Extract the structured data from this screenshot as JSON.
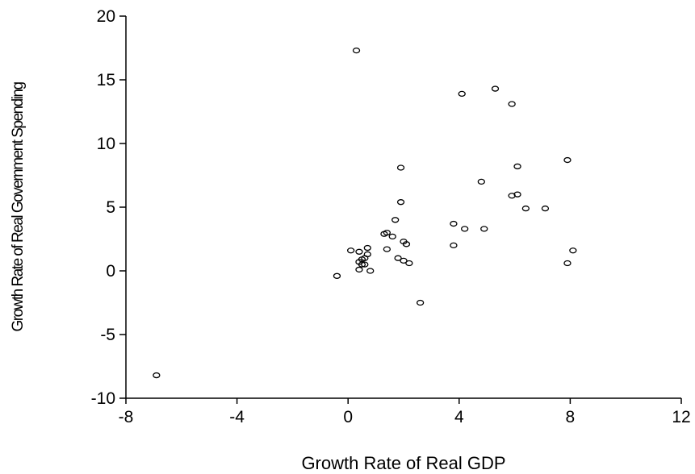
{
  "chart_data": {
    "type": "scatter",
    "title": "",
    "xlabel": "Growth Rate of Real GDP",
    "ylabel": "Growth Rate of Real Government Spending",
    "xlim": [
      -8,
      12
    ],
    "ylim": [
      -10,
      20
    ],
    "xticks": [
      "-8",
      "-4",
      "0",
      "4",
      "8",
      "12"
    ],
    "yticks": [
      "-10",
      "-5",
      "0",
      "5",
      "10",
      "15",
      "20"
    ],
    "grid": false,
    "legend": "none",
    "marker": "open-circle",
    "points": [
      [
        0.3,
        17.3
      ],
      [
        5.3,
        14.3
      ],
      [
        4.1,
        13.9
      ],
      [
        5.9,
        13.1
      ],
      [
        7.9,
        8.7
      ],
      [
        1.9,
        8.1
      ],
      [
        6.1,
        8.2
      ],
      [
        4.8,
        7.0
      ],
      [
        5.9,
        5.9
      ],
      [
        6.1,
        6.0
      ],
      [
        1.9,
        5.4
      ],
      [
        6.4,
        4.9
      ],
      [
        7.1,
        4.9
      ],
      [
        1.7,
        4.0
      ],
      [
        3.8,
        3.7
      ],
      [
        4.2,
        3.3
      ],
      [
        4.9,
        3.3
      ],
      [
        1.3,
        2.9
      ],
      [
        1.4,
        3.0
      ],
      [
        1.6,
        2.7
      ],
      [
        2.0,
        2.3
      ],
      [
        2.1,
        2.1
      ],
      [
        3.8,
        2.0
      ],
      [
        0.7,
        1.8
      ],
      [
        1.4,
        1.7
      ],
      [
        0.1,
        1.6
      ],
      [
        0.4,
        1.5
      ],
      [
        8.1,
        1.6
      ],
      [
        0.7,
        1.3
      ],
      [
        0.6,
        1.0
      ],
      [
        1.8,
        1.0
      ],
      [
        2.0,
        0.8
      ],
      [
        0.5,
        0.9
      ],
      [
        0.4,
        0.7
      ],
      [
        0.5,
        0.5
      ],
      [
        0.6,
        0.5
      ],
      [
        2.2,
        0.6
      ],
      [
        7.9,
        0.6
      ],
      [
        0.4,
        0.1
      ],
      [
        0.8,
        0.0
      ],
      [
        -0.4,
        -0.4
      ],
      [
        2.6,
        -2.5
      ],
      [
        -6.9,
        -8.2
      ]
    ]
  }
}
